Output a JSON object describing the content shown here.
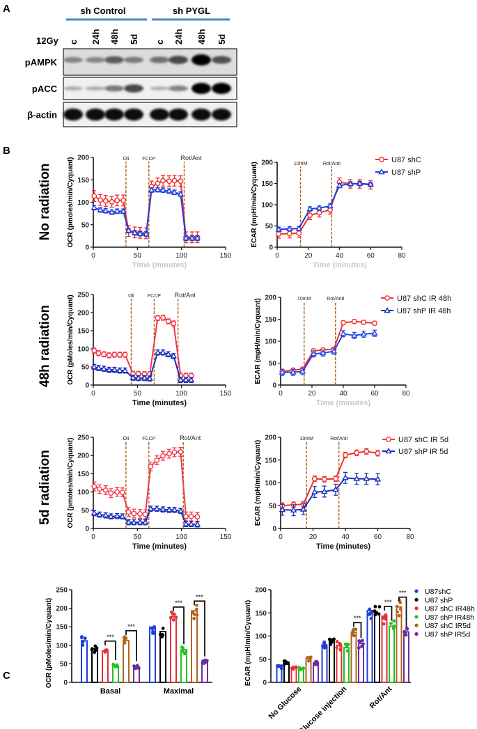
{
  "panel_a": {
    "letter": "A",
    "groups": [
      "sh Control",
      "sh PYGL"
    ],
    "group_color": "#4a86c8",
    "dose_label": "12Gy",
    "lanes": [
      "c",
      "24h",
      "48h",
      "5d",
      "c",
      "24h",
      "48h",
      "5d"
    ],
    "blots": [
      {
        "label": "pAMPK",
        "band_intensity": [
          0.35,
          0.35,
          0.55,
          0.4,
          0.45,
          0.65,
          1.0,
          0.6
        ]
      },
      {
        "label": "pACC",
        "band_intensity": [
          0.15,
          0.15,
          0.4,
          0.65,
          0.12,
          0.35,
          1.0,
          1.0
        ]
      },
      {
        "label": "β-actin",
        "band_intensity": [
          0.95,
          0.95,
          0.95,
          0.95,
          0.95,
          0.95,
          0.95,
          0.95
        ]
      }
    ]
  },
  "panel_b": {
    "letter": "B",
    "row_labels": [
      "No radiation",
      "48h radiation",
      "5d radiation"
    ]
  },
  "panel_c": {
    "letter": "C",
    "legend": [
      {
        "name": "U87shC",
        "color": "#1f3fd9"
      },
      {
        "name": "U87 shP",
        "color": "#000000"
      },
      {
        "name": "U87 shC IR48h",
        "color": "#e8303a"
      },
      {
        "name": "U87 shP IR48h",
        "color": "#22c322"
      },
      {
        "name": "U87 shC IR5d",
        "color": "#b5651d"
      },
      {
        "name": "U87 shP IR5d",
        "color": "#6a2fa0"
      }
    ]
  },
  "chart_data": [
    {
      "type": "line",
      "panel": "B",
      "row": "No radiation",
      "ylabel": "OCR (pmoles/min/Cyquant)",
      "xlabel": "Time (minutes)",
      "xlim": [
        0,
        150
      ],
      "ylim": [
        0,
        200
      ],
      "xticks": [
        0,
        50,
        100,
        150
      ],
      "yticks": [
        0,
        50,
        100,
        150,
        200
      ],
      "injections": [
        {
          "x": 37,
          "label": "Oli"
        },
        {
          "x": 63,
          "label": "FCCP"
        },
        {
          "x": 103,
          "label": "Rot/Ant"
        }
      ],
      "x": [
        1,
        8,
        14,
        21,
        27,
        34,
        40,
        47,
        53,
        60,
        66,
        73,
        79,
        86,
        92,
        99,
        105,
        112,
        118
      ],
      "series": [
        {
          "name": "U87 shC",
          "color": "#f0302a",
          "marker": "circle",
          "err": 12,
          "values": [
            114,
            105,
            103,
            101,
            104,
            104,
            36,
            33,
            32,
            31,
            135,
            142,
            148,
            147,
            148,
            147,
            22,
            22,
            22
          ]
        },
        {
          "name": "U87 shP",
          "color": "#1f3fd9",
          "marker": "triangle",
          "err": 5,
          "values": [
            88,
            83,
            81,
            78,
            80,
            80,
            37,
            32,
            30,
            29,
            127,
            128,
            127,
            125,
            122,
            118,
            20,
            20,
            20
          ]
        }
      ],
      "legend": false
    },
    {
      "type": "line",
      "panel": "B",
      "row": "No radiation",
      "ylabel": "ECAR (mpH/min/Cyquant)",
      "xlabel": "Time (minutes)",
      "xlim": [
        0,
        80
      ],
      "ylim": [
        0,
        200
      ],
      "xticks": [
        0,
        20,
        40,
        60,
        80
      ],
      "yticks": [
        0,
        50,
        100,
        150,
        200
      ],
      "injections": [
        {
          "x": 15,
          "label": "10mM"
        },
        {
          "x": 35,
          "label": "Rot/Anti"
        }
      ],
      "x": [
        1,
        8,
        14,
        21,
        27,
        34,
        40,
        47,
        53,
        60
      ],
      "series": [
        {
          "name": "U87 shC",
          "color": "#f0302a",
          "marker": "circle",
          "err": 10,
          "values": [
            31,
            32,
            33,
            75,
            81,
            88,
            153,
            149,
            149,
            147
          ]
        },
        {
          "name": "U87 shP",
          "color": "#1f3fd9",
          "marker": "triangle",
          "err": 5,
          "values": [
            42,
            43,
            44,
            90,
            92,
            97,
            145,
            149,
            150,
            148
          ]
        }
      ],
      "legend": true
    },
    {
      "type": "line",
      "panel": "B",
      "row": "48h radiation",
      "ylabel": "OCR (pMoles/min/Cyquant)",
      "xlabel": "Time (minutes)",
      "xlim": [
        0,
        150
      ],
      "ylim": [
        0,
        250
      ],
      "xticks": [
        0,
        50,
        100,
        150
      ],
      "yticks": [
        0,
        50,
        100,
        150,
        200,
        250
      ],
      "injections": [
        {
          "x": 43,
          "label": "Oli"
        },
        {
          "x": 69,
          "label": "FCCP"
        },
        {
          "x": 96,
          "label": "Rot/Ant"
        }
      ],
      "x": [
        1,
        6,
        12,
        18,
        24,
        30,
        36,
        45,
        51,
        58,
        64,
        73,
        79,
        85,
        91,
        99,
        105,
        111
      ],
      "series": [
        {
          "name": "U87 shC IR 48h",
          "color": "#f2384a",
          "marker": "circle",
          "err": 7,
          "values": [
            95,
            88,
            85,
            82,
            84,
            84,
            84,
            31,
            31,
            30,
            30,
            185,
            186,
            176,
            170,
            26,
            26,
            26
          ]
        },
        {
          "name": "U87 shP IR 48h",
          "color": "#1a2fb8",
          "marker": "triangle",
          "err": 7,
          "values": [
            50,
            47,
            45,
            42,
            42,
            40,
            40,
            20,
            19,
            19,
            18,
            90,
            90,
            85,
            80,
            14,
            14,
            14
          ]
        }
      ],
      "legend": true
    },
    {
      "type": "line",
      "panel": "B",
      "row": "48h radiation",
      "ylabel": "ECAR (mpH/min/Cyquant)",
      "xlabel": "Time (minutes)",
      "xlim": [
        0,
        80
      ],
      "ylim": [
        0,
        200
      ],
      "xticks": [
        0,
        20,
        40,
        60,
        80
      ],
      "yticks": [
        0,
        50,
        100,
        150,
        200
      ],
      "injections": [
        {
          "x": 15,
          "label": "10mM"
        },
        {
          "x": 35,
          "label": "Rot/Anti"
        }
      ],
      "x": [
        1,
        8,
        14,
        21,
        27,
        34,
        40,
        47,
        53,
        60
      ],
      "series": [
        {
          "name": "U87 shC IR 48h",
          "color": "#f0302a",
          "marker": "circle",
          "err": 4,
          "values": [
            31,
            34,
            36,
            78,
            80,
            82,
            142,
            145,
            143,
            141
          ]
        },
        {
          "name": "U87 shP IR 48h",
          "color": "#2a45e0",
          "marker": "triangle",
          "err": 7,
          "values": [
            29,
            29,
            31,
            71,
            73,
            77,
            117,
            113,
            116,
            118
          ]
        }
      ],
      "legend": false
    },
    {
      "type": "line",
      "panel": "B",
      "row": "5d radiation",
      "ylabel": "OCR (pmoles/min/Cyquant)",
      "xlabel": "Time (minutes)",
      "xlim": [
        0,
        150
      ],
      "ylim": [
        0,
        250
      ],
      "xticks": [
        0,
        50,
        100,
        150
      ],
      "yticks": [
        0,
        50,
        100,
        150,
        200,
        250
      ],
      "injections": [
        {
          "x": 37,
          "label": "Oli"
        },
        {
          "x": 63,
          "label": "FCCP"
        },
        {
          "x": 102,
          "label": "Rot/Ant"
        }
      ],
      "x": [
        1,
        7,
        14,
        20,
        27,
        33,
        40,
        46,
        53,
        59,
        65,
        72,
        79,
        86,
        92,
        99,
        105,
        111,
        118
      ],
      "series": [
        {
          "name": "U87 shC IR 5d",
          "color": "#f2384a",
          "marker": "circle",
          "err": 12,
          "values": [
            115,
            108,
            105,
            97,
            100,
            99,
            45,
            41,
            40,
            39,
            170,
            187,
            199,
            205,
            209,
            210,
            33,
            33,
            32
          ]
        },
        {
          "name": "U87 shP IR 5d",
          "color": "#1a2fb8",
          "marker": "triangle",
          "err": 7,
          "values": [
            42,
            38,
            36,
            33,
            34,
            33,
            17,
            17,
            17,
            17,
            54,
            54,
            52,
            51,
            51,
            48,
            12,
            12,
            11
          ]
        }
      ],
      "legend": true
    },
    {
      "type": "line",
      "panel": "B",
      "row": "5d radiation",
      "ylabel": "ECAR (mpH/min/Cyquant)",
      "xlabel": "Time (minutes)",
      "xlim": [
        0,
        80
      ],
      "ylim": [
        0,
        200
      ],
      "xticks": [
        0,
        20,
        40,
        60,
        80
      ],
      "yticks": [
        0,
        50,
        100,
        150,
        200
      ],
      "injections": [
        {
          "x": 16,
          "label": "10mM"
        },
        {
          "x": 36,
          "label": "Rot/Anti"
        }
      ],
      "x": [
        1,
        8,
        14,
        21,
        27,
        34,
        40,
        47,
        53,
        60
      ],
      "series": [
        {
          "name": "U87 shC IR 5d",
          "color": "#f0302a",
          "marker": "circle",
          "err": 6,
          "values": [
            50,
            52,
            53,
            109,
            108,
            109,
            161,
            166,
            169,
            165
          ]
        },
        {
          "name": "U87 shP IR 5d",
          "color": "#1a2fb8",
          "marker": "triangle",
          "err": 12,
          "values": [
            41,
            40,
            42,
            80,
            81,
            85,
            111,
            109,
            109,
            108
          ]
        }
      ],
      "legend": false
    },
    {
      "type": "bar",
      "panel": "C",
      "ylabel": "OCR (pMoles/min/Cyquant)",
      "ylim": [
        0,
        250
      ],
      "yticks": [
        0,
        50,
        100,
        150,
        200,
        250
      ],
      "categories": [
        "Basal",
        "Maximal"
      ],
      "series_names": [
        "U87shC",
        "U87 shP",
        "U87 shC IR48h",
        "U87 shP IR48h",
        "U87 shC IR5d",
        "U87 shP IR5d"
      ],
      "values": [
        [
          112,
          90,
          85,
          45,
          113,
          42
        ],
        [
          149,
          137,
          177,
          88,
          193,
          55
        ]
      ],
      "significance": [
        {
          "category": "Basal",
          "pair": [
            2,
            3
          ],
          "label": "***"
        },
        {
          "category": "Basal",
          "pair": [
            4,
            5
          ],
          "label": "***"
        },
        {
          "category": "Maximal",
          "pair": [
            2,
            3
          ],
          "label": "***"
        },
        {
          "category": "Maximal",
          "pair": [
            4,
            5
          ],
          "label": "***"
        }
      ]
    },
    {
      "type": "bar",
      "panel": "C",
      "ylabel": "ECAR (mpH/min/Cyquant)",
      "ylim": [
        0,
        200
      ],
      "yticks": [
        0,
        50,
        100,
        150,
        200
      ],
      "categories": [
        "No Glucose",
        "Glucose injection",
        "Rot/Ant"
      ],
      "series_names": [
        "U87shC",
        "U87 shP",
        "U87 shC IR48h",
        "U87 shP IR48h",
        "U87 shC IR5d",
        "U87 shP IR5d"
      ],
      "values": [
        [
          33,
          43,
          32,
          30,
          52,
          42
        ],
        [
          80,
          91,
          80,
          75,
          108,
          84
        ],
        [
          155,
          149,
          143,
          121,
          163,
          109
        ]
      ],
      "significance": [
        {
          "category": "Glucose injection",
          "pair": [
            4,
            5
          ],
          "label": "***"
        },
        {
          "category": "Rot/Ant",
          "pair": [
            2,
            3
          ],
          "label": "***"
        },
        {
          "category": "Rot/Ant",
          "pair": [
            4,
            5
          ],
          "label": "***"
        }
      ]
    }
  ]
}
